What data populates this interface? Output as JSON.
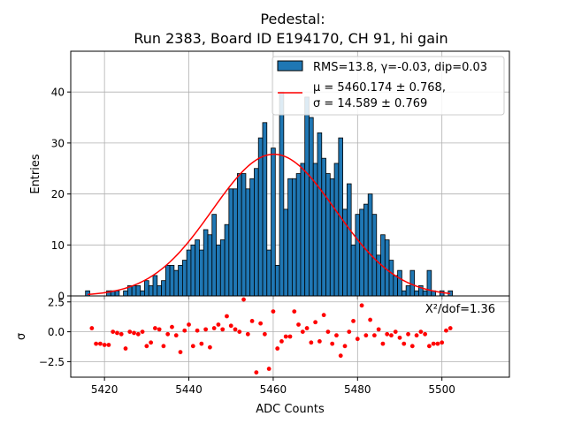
{
  "chart_data": [
    {
      "type": "bar",
      "title": "Pedestal:\nRun 2383, Board ID E194170, CH 91, hi gain",
      "title_lines": [
        "Pedestal:",
        "Run 2383, Board ID E194170, CH 91, hi gain"
      ],
      "ylabel": "Entries",
      "xlim": [
        5412,
        5516
      ],
      "ylim": [
        0,
        48
      ],
      "yticks": [
        0,
        10,
        20,
        30,
        40
      ],
      "xticks": [
        5420,
        5440,
        5460,
        5480,
        5500
      ],
      "grid": true,
      "legend_placement": "top-right",
      "bin_width": 1,
      "bar_color": "#1f77b4",
      "fit_color": "#ff0000",
      "histogram": {
        "name": "RMS=13.8, γ=-0.03, dip=0.03",
        "x": [
          5416,
          5417,
          5418,
          5419,
          5420,
          5421,
          5422,
          5423,
          5424,
          5425,
          5426,
          5427,
          5428,
          5429,
          5430,
          5431,
          5432,
          5433,
          5434,
          5435,
          5436,
          5437,
          5438,
          5439,
          5440,
          5441,
          5442,
          5443,
          5444,
          5445,
          5446,
          5447,
          5448,
          5449,
          5450,
          5451,
          5452,
          5453,
          5454,
          5455,
          5456,
          5457,
          5458,
          5459,
          5460,
          5461,
          5462,
          5463,
          5464,
          5465,
          5466,
          5467,
          5468,
          5469,
          5470,
          5471,
          5472,
          5473,
          5474,
          5475,
          5476,
          5477,
          5478,
          5479,
          5480,
          5481,
          5482,
          5483,
          5484,
          5485,
          5486,
          5487,
          5488,
          5489,
          5490,
          5491,
          5492,
          5493,
          5494,
          5495,
          5496,
          5497,
          5498,
          5499,
          5500,
          5501,
          5502
        ],
        "values": [
          1,
          0,
          0,
          0,
          0,
          1,
          1,
          1,
          0,
          1,
          2,
          2,
          2,
          1,
          3,
          2,
          4,
          2,
          3,
          6,
          6,
          5,
          6,
          7,
          9,
          10,
          11,
          9,
          13,
          12,
          16,
          10,
          11,
          14,
          21,
          21,
          24,
          24,
          21,
          23,
          25,
          31,
          34,
          9,
          29,
          6,
          40,
          17,
          23,
          23,
          24,
          26,
          39,
          35,
          26,
          32,
          27,
          24,
          23,
          26,
          31,
          17,
          22,
          10,
          16,
          17,
          18,
          20,
          16,
          8,
          12,
          11,
          7,
          4,
          5,
          1,
          2,
          5,
          1,
          2,
          1,
          5,
          1,
          0,
          1,
          0,
          1
        ]
      },
      "fit": {
        "name_line1": "μ = 5460.174 ± 0.768,",
        "name_line2": "σ = 14.589 ± 0.769",
        "mu": 5460.174,
        "sigma": 14.589,
        "amplitude": 27.8,
        "x_range": [
          5416,
          5502
        ]
      }
    },
    {
      "type": "scatter",
      "xlabel": "ADC Counts",
      "ylabel": "σ",
      "xlim": [
        5412,
        5516
      ],
      "ylim": [
        -3.8,
        3.0
      ],
      "yticks": [
        2.5,
        0.0,
        -2.5
      ],
      "ytick_labels": [
        "2.5",
        "0.0",
        "−2.5"
      ],
      "xticks": [
        5420,
        5440,
        5460,
        5480,
        5500
      ],
      "grid": true,
      "marker_color": "#ff0000",
      "annotation": "X²/dof=1.36",
      "x": [
        5417,
        5418,
        5419,
        5420,
        5421,
        5422,
        5423,
        5424,
        5425,
        5426,
        5427,
        5428,
        5429,
        5430,
        5431,
        5432,
        5433,
        5434,
        5435,
        5436,
        5437,
        5438,
        5439,
        5440,
        5441,
        5442,
        5443,
        5444,
        5445,
        5446,
        5447,
        5448,
        5449,
        5450,
        5451,
        5452,
        5453,
        5454,
        5455,
        5456,
        5457,
        5458,
        5459,
        5460,
        5461,
        5462,
        5463,
        5464,
        5465,
        5466,
        5467,
        5468,
        5469,
        5470,
        5471,
        5472,
        5473,
        5474,
        5475,
        5476,
        5477,
        5478,
        5479,
        5480,
        5481,
        5482,
        5483,
        5484,
        5485,
        5486,
        5487,
        5488,
        5489,
        5490,
        5491,
        5492,
        5493,
        5494,
        5495,
        5496,
        5497,
        5498,
        5499,
        5500,
        5501,
        5502
      ],
      "y": [
        0.3,
        -1.0,
        -1.0,
        -1.1,
        -1.1,
        0.0,
        -0.1,
        -0.2,
        -1.4,
        0.0,
        -0.1,
        -0.2,
        0.0,
        -1.2,
        -0.9,
        0.3,
        0.2,
        -1.2,
        -0.2,
        0.4,
        -0.3,
        -1.7,
        0.1,
        0.6,
        -1.2,
        0.1,
        -1.0,
        0.2,
        -1.3,
        0.3,
        0.6,
        0.2,
        1.3,
        0.5,
        0.2,
        0.0,
        2.7,
        -0.2,
        0.9,
        -3.4,
        0.7,
        -0.2,
        -3.1,
        1.7,
        -1.4,
        -0.8,
        -0.4,
        -0.4,
        1.7,
        0.6,
        0.0,
        0.3,
        -0.9,
        0.8,
        -0.8,
        1.4,
        0.0,
        -1.0,
        -0.3,
        -2.0,
        -1.2,
        0.0,
        0.9,
        -0.6,
        2.2,
        -0.3,
        1.0,
        -0.3,
        0.2,
        -1.0,
        -0.2,
        -0.3,
        0.0,
        -0.5,
        -1.0,
        -0.2,
        -1.2,
        -0.3,
        0.0,
        -0.2,
        -1.2,
        -1.0,
        -1.0,
        -0.9,
        0.1,
        0.3
      ]
    }
  ]
}
